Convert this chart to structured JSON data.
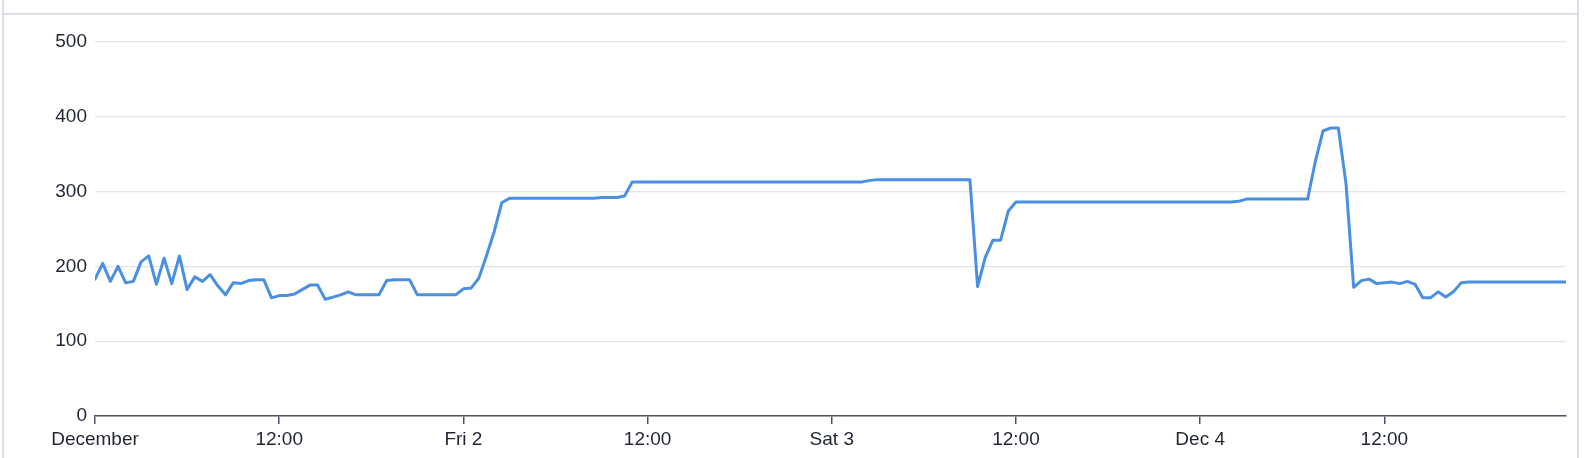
{
  "chart_data": {
    "type": "line",
    "color": "#4a90e2",
    "marker": "none",
    "line_style": "solid",
    "grid": "y",
    "x": [
      "--12-01T00:00",
      "--12-01T00:30",
      "--12-01T01:00",
      "--12-01T01:30",
      "--12-01T02:00",
      "--12-01T02:30",
      "--12-01T03:00",
      "--12-01T03:30",
      "--12-01T04:00",
      "--12-01T04:30",
      "--12-01T05:00",
      "--12-01T05:30",
      "--12-01T06:00",
      "--12-01T06:30",
      "--12-01T07:00",
      "--12-01T07:30",
      "--12-01T08:00",
      "--12-01T08:30",
      "--12-01T09:00",
      "--12-01T09:30",
      "--12-01T10:00",
      "--12-01T10:30",
      "--12-01T11:00",
      "--12-01T11:30",
      "--12-01T12:00",
      "--12-01T12:30",
      "--12-01T13:00",
      "--12-01T13:30",
      "--12-01T14:00",
      "--12-01T14:30",
      "--12-01T15:00",
      "--12-01T15:30",
      "--12-01T16:00",
      "--12-01T16:30",
      "--12-01T17:00",
      "--12-01T18:30",
      "--12-01T19:00",
      "--12-01T19:30",
      "--12-01T20:30",
      "--12-01T21:00",
      "--12-01T23:30",
      "--12-02T00:00",
      "--12-02T00:30",
      "--12-02T01:00",
      "--12-02T01:30",
      "--12-02T02:00",
      "--12-02T02:30",
      "--12-02T03:00",
      "--12-02T08:30",
      "--12-02T09:00",
      "--12-02T10:00",
      "--12-02T10:30",
      "--12-02T11:00",
      "--12-03T02:00",
      "--12-03T02:30",
      "--12-03T03:00",
      "--12-03T09:00",
      "--12-03T09:30",
      "--12-03T10:00",
      "--12-03T10:30",
      "--12-03T11:00",
      "--12-03T11:30",
      "--12-03T12:00",
      "--12-04T02:00",
      "--12-04T02:30",
      "--12-04T03:00",
      "--12-04T07:00",
      "--12-04T07:30",
      "--12-04T08:00",
      "--12-04T08:30",
      "--12-04T09:00",
      "--12-04T09:30",
      "--12-04T10:00",
      "--12-04T10:30",
      "--12-04T11:00",
      "--12-04T11:30",
      "--12-04T12:00",
      "--12-04T12:30",
      "--12-04T13:00",
      "--12-04T13:30",
      "--12-04T14:00",
      "--12-04T14:30",
      "--12-04T15:00",
      "--12-04T15:30",
      "--12-04T16:00",
      "--12-04T16:30",
      "--12-04T17:00",
      "--12-04T17:30",
      "--12-04T18:00",
      "--12-04T23:50"
    ],
    "values": [
      183,
      204,
      180,
      200,
      178,
      180,
      206,
      214,
      176,
      211,
      177,
      214,
      169,
      186,
      180,
      189,
      174,
      162,
      178,
      177,
      181,
      182,
      182,
      158,
      161,
      161,
      163,
      169,
      175,
      175,
      156,
      159,
      162,
      166,
      162,
      162,
      181,
      182,
      182,
      162,
      162,
      170,
      171,
      184,
      214,
      246,
      285,
      291,
      291,
      292,
      292,
      294,
      313,
      313,
      315,
      316,
      316,
      173,
      212,
      235,
      235,
      274,
      286,
      286,
      287,
      290,
      290,
      340,
      381,
      385,
      385,
      311,
      172,
      181,
      183,
      177,
      178,
      179,
      177,
      180,
      176,
      158,
      158,
      166,
      159,
      166,
      178,
      179,
      179,
      179
    ],
    "xlim": [
      "--12-01T00:00",
      "--12-04T23:50"
    ],
    "xticks": [
      {
        "value": "--12-01T00:00",
        "label": "December"
      },
      {
        "value": "--12-01T12:00",
        "label": "12:00"
      },
      {
        "value": "--12-02T00:00",
        "label": "Fri 2"
      },
      {
        "value": "--12-02T12:00",
        "label": "12:00"
      },
      {
        "value": "--12-03T00:00",
        "label": "Sat 3"
      },
      {
        "value": "--12-03T12:00",
        "label": "12:00"
      },
      {
        "value": "--12-04T00:00",
        "label": "Dec 4"
      },
      {
        "value": "--12-04T12:00",
        "label": "12:00"
      }
    ],
    "ylim": [
      0,
      500
    ],
    "yticks": [
      0,
      100,
      200,
      300,
      400,
      500
    ]
  }
}
